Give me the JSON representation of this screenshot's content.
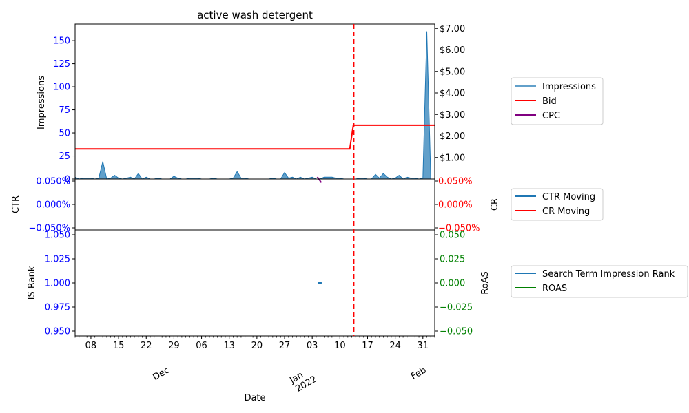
{
  "chart_data": [
    {
      "type": "area",
      "title": "active wash detergent",
      "ylabel": "Impressions",
      "ylim": [
        0,
        168
      ],
      "yticks": [
        "0",
        "25",
        "50",
        "75",
        "100",
        "125",
        "150"
      ],
      "y2lim": [
        0,
        7.2
      ],
      "y2ticks": [
        "$1.00",
        "$2.00",
        "$3.00",
        "$4.00",
        "$5.00",
        "$6.00",
        "$7.00"
      ],
      "xlim": [
        0,
        91
      ],
      "series": [
        {
          "name": "Impressions",
          "color": "#1f77b4",
          "x": [
            0,
            1,
            2,
            3,
            4,
            5,
            6,
            7,
            8,
            9,
            10,
            11,
            12,
            13,
            14,
            15,
            16,
            17,
            18,
            19,
            20,
            21,
            22,
            23,
            24,
            25,
            26,
            27,
            28,
            29,
            30,
            31,
            32,
            33,
            34,
            35,
            36,
            37,
            38,
            39,
            40,
            41,
            42,
            43,
            44,
            45,
            46,
            47,
            48,
            49,
            50,
            51,
            52,
            53,
            54,
            55,
            56,
            57,
            58,
            59,
            60,
            61,
            62,
            63,
            64,
            65,
            66,
            67,
            68,
            69,
            70,
            71,
            72,
            73,
            74,
            75,
            76,
            77,
            78,
            79,
            80,
            81,
            82,
            83,
            84,
            85,
            86,
            87,
            88,
            89,
            90,
            91
          ],
          "values": [
            2,
            0,
            1,
            1,
            1,
            0,
            1,
            19,
            0,
            1,
            4,
            1,
            0,
            1,
            2,
            0,
            6,
            0,
            2,
            0,
            0,
            1,
            0,
            0,
            0,
            3,
            1,
            0,
            0,
            1,
            1,
            1,
            0,
            0,
            0,
            1,
            0,
            0,
            0,
            0,
            1,
            8,
            1,
            1,
            0,
            0,
            0,
            0,
            0,
            0,
            1,
            0,
            0,
            7,
            1,
            2,
            0,
            2,
            0,
            1,
            2,
            0,
            0,
            2,
            2,
            2,
            1,
            1,
            0,
            0,
            0,
            0,
            1,
            1,
            0,
            0,
            5,
            1,
            6,
            2,
            0,
            1,
            4,
            0,
            2,
            1,
            1,
            0,
            1,
            160,
            0,
            0
          ]
        },
        {
          "name": "Bid",
          "color": "#ff0000",
          "axis": "right",
          "x": [
            0,
            69.5,
            70.4,
            91
          ],
          "values": [
            1.4,
            1.4,
            2.5,
            2.5
          ]
        },
        {
          "name": "CPC",
          "color": "#800080",
          "axis": "right",
          "x": [
            61.3,
            62.3
          ],
          "values": [
            0.1,
            -0.17
          ]
        }
      ],
      "vline_x": 70.5
    },
    {
      "type": "line",
      "ylabel": "CTR",
      "ylim": [
        -0.05,
        0.05
      ],
      "yticks": [
        "0.050%",
        "0.000%",
        "−0.050%"
      ],
      "y2label": "CR",
      "y2ticks": [
        "0.050%",
        "0.000%",
        "−0.050%"
      ],
      "series": [
        {
          "name": "CTR Moving",
          "color": "#1f77b4"
        },
        {
          "name": "CR Moving",
          "color": "#ff0000"
        }
      ]
    },
    {
      "type": "line",
      "ylabel": "IS Rank",
      "ylim": [
        0.945,
        1.055
      ],
      "yticks": [
        "1.050",
        "1.025",
        "1.000",
        "0.975",
        "0.950"
      ],
      "y2label": "RoAS",
      "y2lim": [
        -0.055,
        0.055
      ],
      "y2ticks": [
        "0.050",
        "0.025",
        "0.000",
        "−0.025",
        "−0.050"
      ],
      "xlabel": "Date",
      "xticks": [
        "08",
        "15",
        "22",
        "29",
        "06",
        "13",
        "20",
        "27",
        "03",
        "10",
        "17",
        "24",
        "31"
      ],
      "months": [
        "Dec",
        "Jan\n2022",
        "Feb"
      ],
      "series": [
        {
          "name": "Search Term Impression Rank",
          "color": "#1f77b4",
          "x": [
            61.4,
            62.4
          ],
          "values": [
            1.0,
            1.0
          ]
        },
        {
          "name": "ROAS",
          "color": "#008000"
        }
      ]
    }
  ]
}
